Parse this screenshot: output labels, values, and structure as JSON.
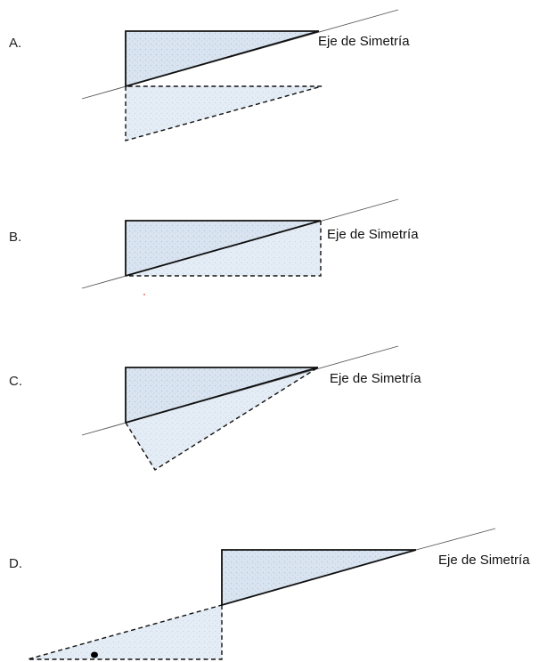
{
  "options": [
    {
      "letter": "A.",
      "axis_label": "Eje de Simetría"
    },
    {
      "letter": "B.",
      "axis_label": "Eje de Simetría"
    },
    {
      "letter": "C.",
      "axis_label": "Eje de Simetría"
    },
    {
      "letter": "D.",
      "axis_label": "Eje de Simetría"
    }
  ]
}
